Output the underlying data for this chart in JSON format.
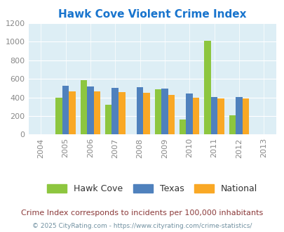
{
  "title": "Hawk Cove Violent Crime Index",
  "subtitle": "Crime Index corresponds to incidents per 100,000 inhabitants",
  "copyright": "© 2025 CityRating.com - https://www.cityrating.com/crime-statistics/",
  "years": [
    2004,
    2005,
    2006,
    2007,
    2008,
    2009,
    2010,
    2011,
    2012,
    2013
  ],
  "data_years": [
    2005,
    2006,
    2007,
    2008,
    2009,
    2010,
    2011,
    2012
  ],
  "hawk_cove": [
    400,
    590,
    325,
    0,
    490,
    165,
    1010,
    205
  ],
  "texas": [
    525,
    515,
    505,
    510,
    495,
    445,
    408,
    408
  ],
  "national": [
    465,
    465,
    455,
    450,
    430,
    400,
    390,
    390
  ],
  "hawk_color": "#8dc63f",
  "texas_color": "#4f81bd",
  "national_color": "#f9a825",
  "bg_color": "#ddeef5",
  "title_color": "#1874cd",
  "subtitle_color": "#8b3a3a",
  "copyright_color": "#7090a0",
  "legend_text_color": "#333333",
  "tick_color": "#888888",
  "ylim": [
    0,
    1200
  ],
  "yticks": [
    0,
    200,
    400,
    600,
    800,
    1000,
    1200
  ],
  "bar_width": 0.27
}
